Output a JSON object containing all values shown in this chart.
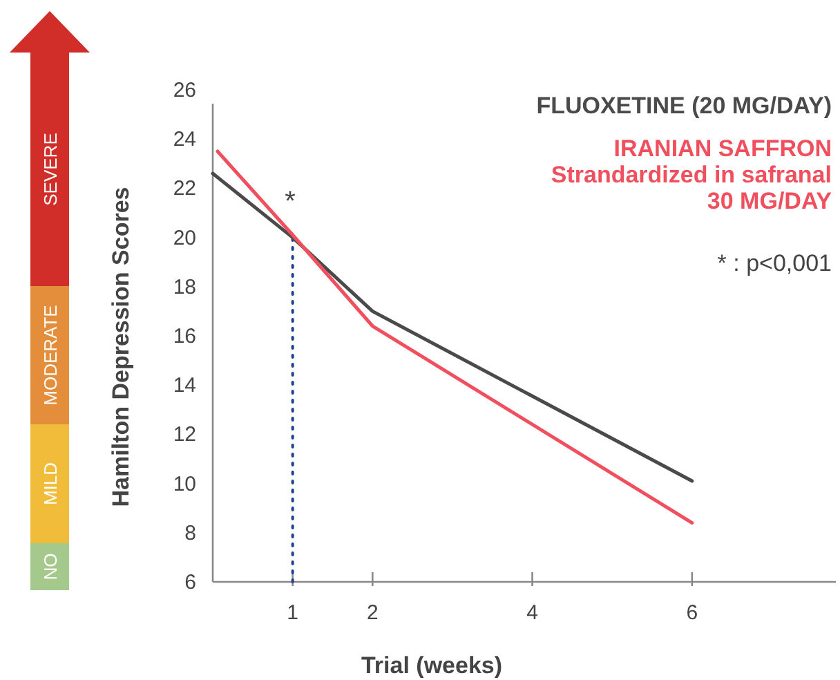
{
  "chart_data": {
    "type": "line",
    "xlabel": "Trial (weeks)",
    "ylabel": "Hamilton Depression Scores",
    "xlim": [
      0,
      7.8
    ],
    "xticks": [
      1,
      2,
      4,
      6
    ],
    "ylim": [
      6,
      26
    ],
    "yticks": [
      6,
      8,
      10,
      12,
      14,
      16,
      18,
      20,
      22,
      24,
      26
    ],
    "series": [
      {
        "name": "FLUOXETINE (20 MG/DAY)",
        "color": "#4a4a4a",
        "x": [
          0,
          1,
          2,
          6
        ],
        "values": [
          22.6,
          20.0,
          17.0,
          10.1
        ]
      },
      {
        "name": "IRANIAN SAFFRON\nStrandardized in safranal\n30 MG/DAY",
        "color": "#f0505e",
        "x": [
          0.06,
          1,
          2,
          6
        ],
        "values": [
          23.5,
          20.1,
          16.4,
          8.4
        ]
      }
    ],
    "legend": "top right",
    "marker": "none",
    "line_style": "solid",
    "grid": false,
    "ref_lines": [
      {
        "axis": "x",
        "value": 1,
        "color": "#1f3f8f",
        "line_style": "dotted"
      }
    ],
    "annotations": [
      "*",
      "* : p<0,001",
      "NO",
      "MILD",
      "MODERATE",
      "SEVERE"
    ]
  }
}
